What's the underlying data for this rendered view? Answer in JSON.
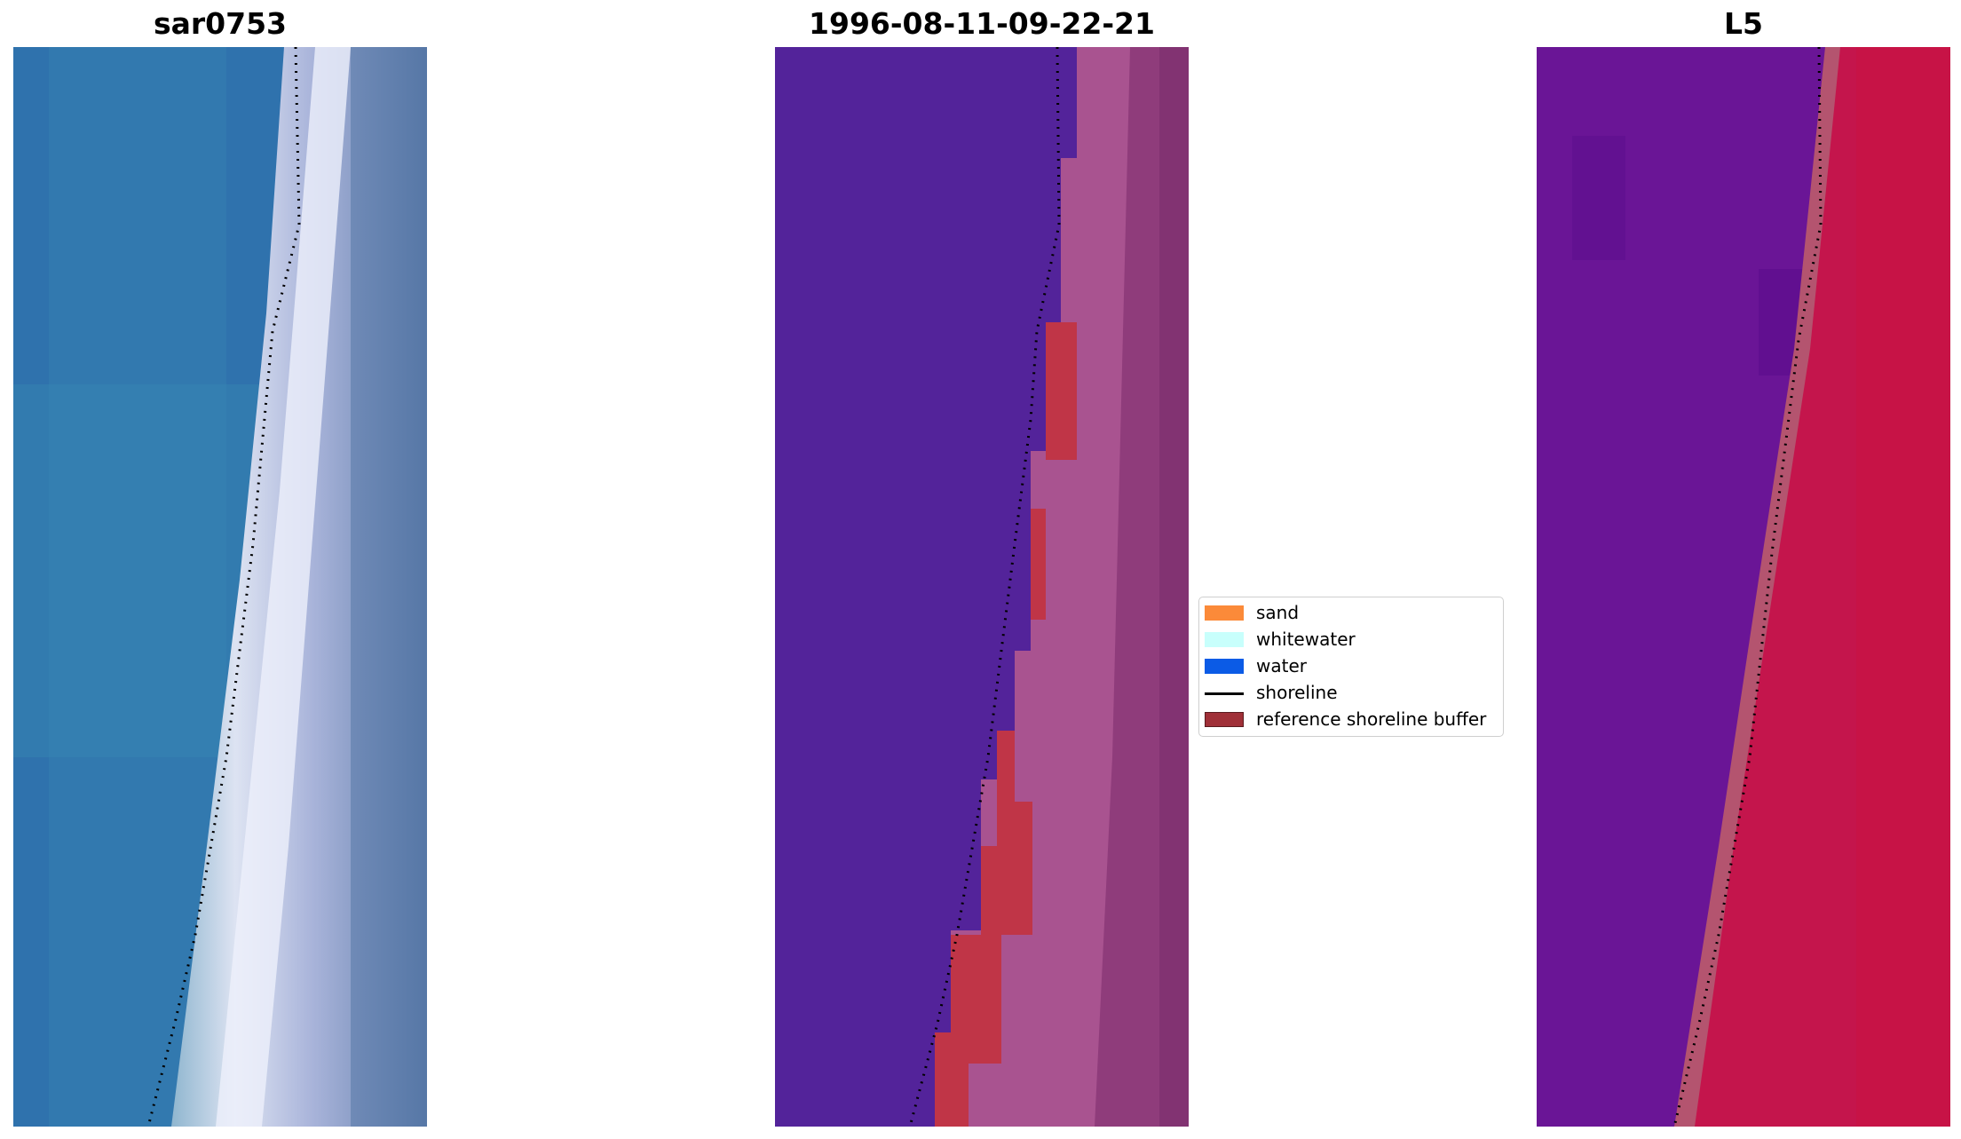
{
  "panels": [
    {
      "title": "sar0753"
    },
    {
      "title": "1996-08-11-09-22-21"
    },
    {
      "title": "L5"
    }
  ],
  "legend": {
    "items": [
      {
        "label": "sand",
        "color": "#fb8a39"
      },
      {
        "label": "whitewater",
        "color": "#c8fffc"
      },
      {
        "label": "water",
        "color": "#0b5be6"
      },
      {
        "label": "shoreline",
        "color": "#000000"
      },
      {
        "label": "reference shoreline buffer",
        "color": "#a03038"
      }
    ]
  },
  "colors": {
    "rgb_water": "#2f6fa8",
    "classified_water": "#53239a",
    "classified_sand": "#a95390",
    "buffer": "#c03547",
    "index_water": "#6a1596",
    "index_land": "#c4154c"
  }
}
